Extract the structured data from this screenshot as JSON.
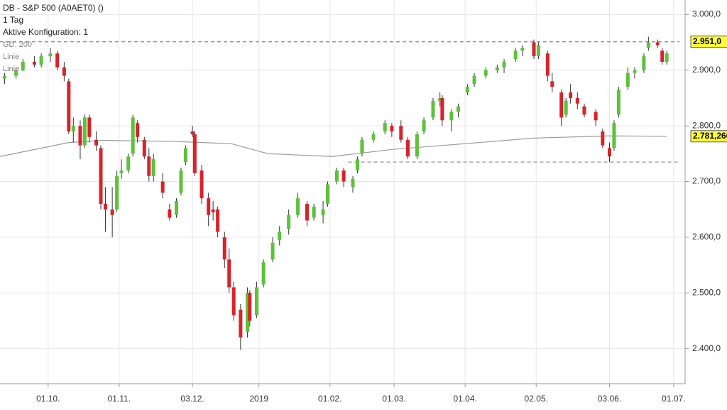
{
  "chart_data": {
    "type": "candlestick",
    "header": [
      "DB - S&P 500 (A0AET0) ()",
      "1 Tag",
      "Aktive Konfiguration: 1",
      "Linie",
      "Linie"
    ],
    "up_color": "#5cc23a",
    "down_color": "#d8232a",
    "xlim": [
      "2018-09-10",
      "2019-07-06"
    ],
    "xticks": [
      {
        "value": "2018-10-01",
        "label": "01.10."
      },
      {
        "value": "2018-11-01",
        "label": "01.11."
      },
      {
        "value": "2018-12-03",
        "label": "03.12."
      },
      {
        "value": "2019-01-01",
        "label": "2019"
      },
      {
        "value": "2019-02-01",
        "label": "01.02."
      },
      {
        "value": "2019-03-01",
        "label": "01.03."
      },
      {
        "value": "2019-04-01",
        "label": "01.04."
      },
      {
        "value": "2019-05-02",
        "label": "02.05."
      },
      {
        "value": "2019-06-03",
        "label": "03.06."
      },
      {
        "value": "2019-07-01",
        "label": "01.07."
      }
    ],
    "ylim": [
      2337,
      3026
    ],
    "yticks": [
      {
        "value": 2400,
        "label": "2.400,0"
      },
      {
        "value": 2500,
        "label": "2.500,0"
      },
      {
        "value": 2600,
        "label": "2.600,0"
      },
      {
        "value": 2700,
        "label": "2.700,0"
      },
      {
        "value": 2800,
        "label": "2.800,0"
      },
      {
        "value": 2900,
        "label": "2.900,0"
      },
      {
        "value": 3000,
        "label": "3.000,0"
      }
    ],
    "grid": true,
    "candles": {
      "dates": [
        "2018-09-12",
        "2018-09-17",
        "2018-09-20",
        "2018-09-25",
        "2018-09-28",
        "2018-10-02",
        "2018-10-05",
        "2018-10-08",
        "2018-10-10",
        "2018-10-12",
        "2018-10-15",
        "2018-10-17",
        "2018-10-19",
        "2018-10-22",
        "2018-10-24",
        "2018-10-26",
        "2018-10-29",
        "2018-10-31",
        "2018-11-02",
        "2018-11-05",
        "2018-11-07",
        "2018-11-09",
        "2018-11-12",
        "2018-11-14",
        "2018-11-16",
        "2018-11-20",
        "2018-11-23",
        "2018-11-26",
        "2018-11-28",
        "2018-11-30",
        "2018-12-03",
        "2018-12-04",
        "2018-12-07",
        "2018-12-10",
        "2018-12-12",
        "2018-12-14",
        "2018-12-17",
        "2018-12-19",
        "2018-12-21",
        "2018-12-24",
        "2018-12-27",
        "2018-12-28",
        "2018-12-31",
        "2019-01-03",
        "2019-01-07",
        "2019-01-10",
        "2019-01-14",
        "2019-01-18",
        "2019-01-22",
        "2019-01-25",
        "2019-01-29",
        "2019-01-31",
        "2019-02-04",
        "2019-02-07",
        "2019-02-11",
        "2019-02-13",
        "2019-02-15",
        "2019-02-20",
        "2019-02-25",
        "2019-02-28",
        "2019-03-04",
        "2019-03-07",
        "2019-03-11",
        "2019-03-14",
        "2019-03-18",
        "2019-03-21",
        "2019-03-22",
        "2019-03-26",
        "2019-03-29",
        "2019-04-02",
        "2019-04-05",
        "2019-04-10",
        "2019-04-15",
        "2019-04-18",
        "2019-04-23",
        "2019-04-26",
        "2019-05-01",
        "2019-05-03",
        "2019-05-07",
        "2019-05-09",
        "2019-05-13",
        "2019-05-15",
        "2019-05-17",
        "2019-05-20",
        "2019-05-23",
        "2019-05-28",
        "2019-05-31",
        "2019-06-03",
        "2019-06-05",
        "2019-06-07",
        "2019-06-11",
        "2019-06-14",
        "2019-06-18",
        "2019-06-20",
        "2019-06-24",
        "2019-06-26",
        "2019-06-28"
      ],
      "open": [
        2885,
        2890,
        2900,
        2915,
        2910,
        2925,
        2930,
        2905,
        2880,
        2790,
        2800,
        2765,
        2815,
        2775,
        2760,
        2660,
        2650,
        2650,
        2715,
        2720,
        2750,
        2805,
        2775,
        2745,
        2710,
        2700,
        2650,
        2640,
        2680,
        2735,
        2790,
        2785,
        2720,
        2670,
        2650,
        2650,
        2600,
        2560,
        2510,
        2470,
        2430,
        2500,
        2460,
        2515,
        2560,
        2595,
        2615,
        2640,
        2660,
        2635,
        2640,
        2660,
        2700,
        2720,
        2690,
        2720,
        2750,
        2775,
        2790,
        2800,
        2800,
        2775,
        2745,
        2790,
        2815,
        2845,
        2850,
        2810,
        2825,
        2860,
        2875,
        2890,
        2900,
        2905,
        2920,
        2935,
        2950,
        2925,
        2930,
        2880,
        2860,
        2820,
        2860,
        2850,
        2835,
        2825,
        2790,
        2760,
        2760,
        2820,
        2870,
        2895,
        2900,
        2940,
        2950,
        2935,
        2915
      ],
      "high": [
        2895,
        2905,
        2920,
        2925,
        2930,
        2940,
        2935,
        2915,
        2885,
        2815,
        2810,
        2820,
        2820,
        2790,
        2765,
        2690,
        2690,
        2720,
        2740,
        2750,
        2820,
        2810,
        2780,
        2760,
        2750,
        2715,
        2660,
        2670,
        2725,
        2765,
        2800,
        2790,
        2730,
        2680,
        2665,
        2655,
        2610,
        2580,
        2520,
        2480,
        2510,
        2505,
        2520,
        2560,
        2600,
        2620,
        2650,
        2680,
        2665,
        2660,
        2665,
        2700,
        2725,
        2725,
        2710,
        2745,
        2780,
        2790,
        2810,
        2805,
        2810,
        2780,
        2790,
        2815,
        2850,
        2860,
        2855,
        2830,
        2840,
        2875,
        2895,
        2905,
        2910,
        2920,
        2940,
        2945,
        2955,
        2950,
        2935,
        2895,
        2865,
        2850,
        2875,
        2860,
        2840,
        2830,
        2795,
        2770,
        2810,
        2870,
        2905,
        2905,
        2930,
        2960,
        2955,
        2940,
        2935
      ],
      "low": [
        2875,
        2885,
        2898,
        2905,
        2905,
        2915,
        2900,
        2880,
        2785,
        2770,
        2740,
        2760,
        2770,
        2755,
        2650,
        2610,
        2600,
        2645,
        2705,
        2715,
        2745,
        2770,
        2740,
        2700,
        2700,
        2670,
        2630,
        2635,
        2675,
        2730,
        2780,
        2710,
        2660,
        2620,
        2630,
        2600,
        2545,
        2500,
        2450,
        2398,
        2420,
        2440,
        2455,
        2510,
        2555,
        2585,
        2605,
        2635,
        2620,
        2630,
        2625,
        2655,
        2695,
        2690,
        2680,
        2715,
        2745,
        2770,
        2785,
        2780,
        2770,
        2740,
        2740,
        2785,
        2810,
        2835,
        2800,
        2790,
        2815,
        2855,
        2870,
        2885,
        2895,
        2895,
        2915,
        2925,
        2920,
        2920,
        2880,
        2860,
        2800,
        2815,
        2840,
        2830,
        2815,
        2800,
        2760,
        2735,
        2755,
        2815,
        2865,
        2885,
        2895,
        2935,
        2940,
        2910,
        2910
      ],
      "close": [
        2890,
        2900,
        2915,
        2910,
        2925,
        2930,
        2905,
        2890,
        2790,
        2800,
        2765,
        2815,
        2780,
        2765,
        2660,
        2650,
        2640,
        2710,
        2720,
        2745,
        2815,
        2780,
        2745,
        2710,
        2740,
        2680,
        2635,
        2665,
        2720,
        2760,
        2785,
        2715,
        2670,
        2640,
        2645,
        2610,
        2560,
        2510,
        2460,
        2420,
        2500,
        2450,
        2510,
        2555,
        2590,
        2610,
        2640,
        2670,
        2630,
        2655,
        2650,
        2695,
        2720,
        2700,
        2705,
        2740,
        2775,
        2785,
        2805,
        2790,
        2775,
        2745,
        2785,
        2810,
        2845,
        2850,
        2810,
        2825,
        2835,
        2870,
        2890,
        2900,
        2905,
        2915,
        2935,
        2940,
        2925,
        2945,
        2890,
        2870,
        2815,
        2845,
        2850,
        2840,
        2820,
        2810,
        2765,
        2745,
        2805,
        2865,
        2895,
        2900,
        2925,
        2950,
        2945,
        2915,
        2930
      ]
    },
    "ma": {
      "name": "GD: 200",
      "color": "#9a9a9a",
      "dates": [
        "2018-09-10",
        "2018-10-10",
        "2018-10-25",
        "2018-11-25",
        "2018-12-20",
        "2019-01-05",
        "2019-02-02",
        "2019-03-01",
        "2019-04-01",
        "2019-05-01",
        "2019-06-03",
        "2019-06-28"
      ],
      "values": [
        2745,
        2770,
        2774,
        2772,
        2768,
        2750,
        2745,
        2758,
        2768,
        2778,
        2782,
        2781.266
      ],
      "last_label": "2.781,266"
    },
    "levels": [
      {
        "value": 2951,
        "label": "2.951,0"
      },
      {
        "value": 2735,
        "from": "2019-02-09"
      }
    ]
  }
}
